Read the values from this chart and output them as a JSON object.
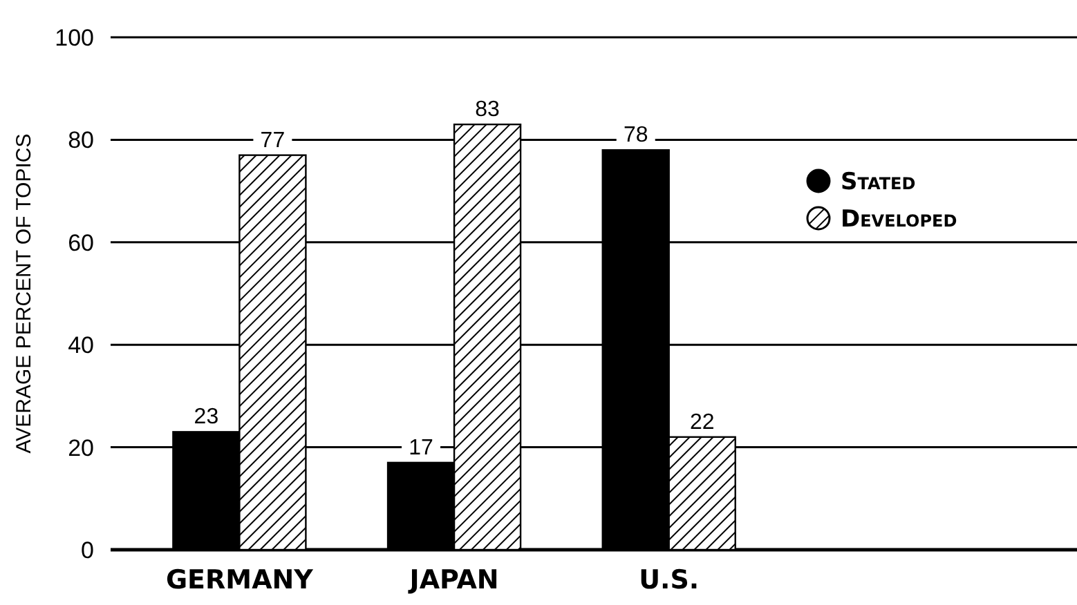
{
  "chart_data": {
    "type": "bar",
    "ylabel": "AVERAGE PERCENT OF TOPICS",
    "categories": [
      "GERMANY",
      "JAPAN",
      "U.S."
    ],
    "series": [
      {
        "name": "Stated",
        "color": "#000000",
        "values": [
          23,
          17,
          78
        ]
      },
      {
        "name": "Developed",
        "color": "#000000",
        "values": [
          77,
          83,
          22
        ]
      }
    ],
    "ylim": [
      0,
      100
    ],
    "yticks": [
      0,
      20,
      40,
      60,
      80,
      100
    ],
    "grid": "y",
    "legend": "top right",
    "data_labels": true
  }
}
